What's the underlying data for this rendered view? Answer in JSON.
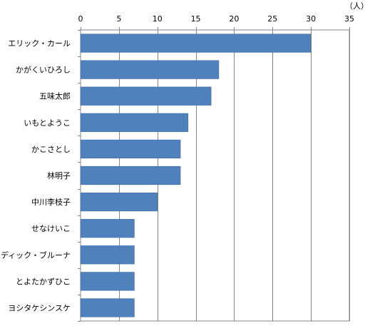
{
  "chart_data": {
    "type": "bar",
    "orientation": "horizontal",
    "categories": [
      "エリック・カール",
      "かがくいひろし",
      "五味太郎",
      "いもとようこ",
      "かこさとし",
      "林明子",
      "中川李枝子",
      "せなけいこ",
      "ディック・ブルーナ",
      "とよたかずひこ",
      "ヨシタケシンスケ"
    ],
    "values": [
      30,
      18,
      17,
      14,
      13,
      13,
      10,
      7,
      7,
      7,
      7
    ],
    "x_unit": "（人）",
    "xlim": [
      0,
      35
    ],
    "x_ticks": [
      0,
      5,
      10,
      15,
      20,
      25,
      30,
      35
    ],
    "grid": true,
    "bar_color": "#4f81bd"
  }
}
